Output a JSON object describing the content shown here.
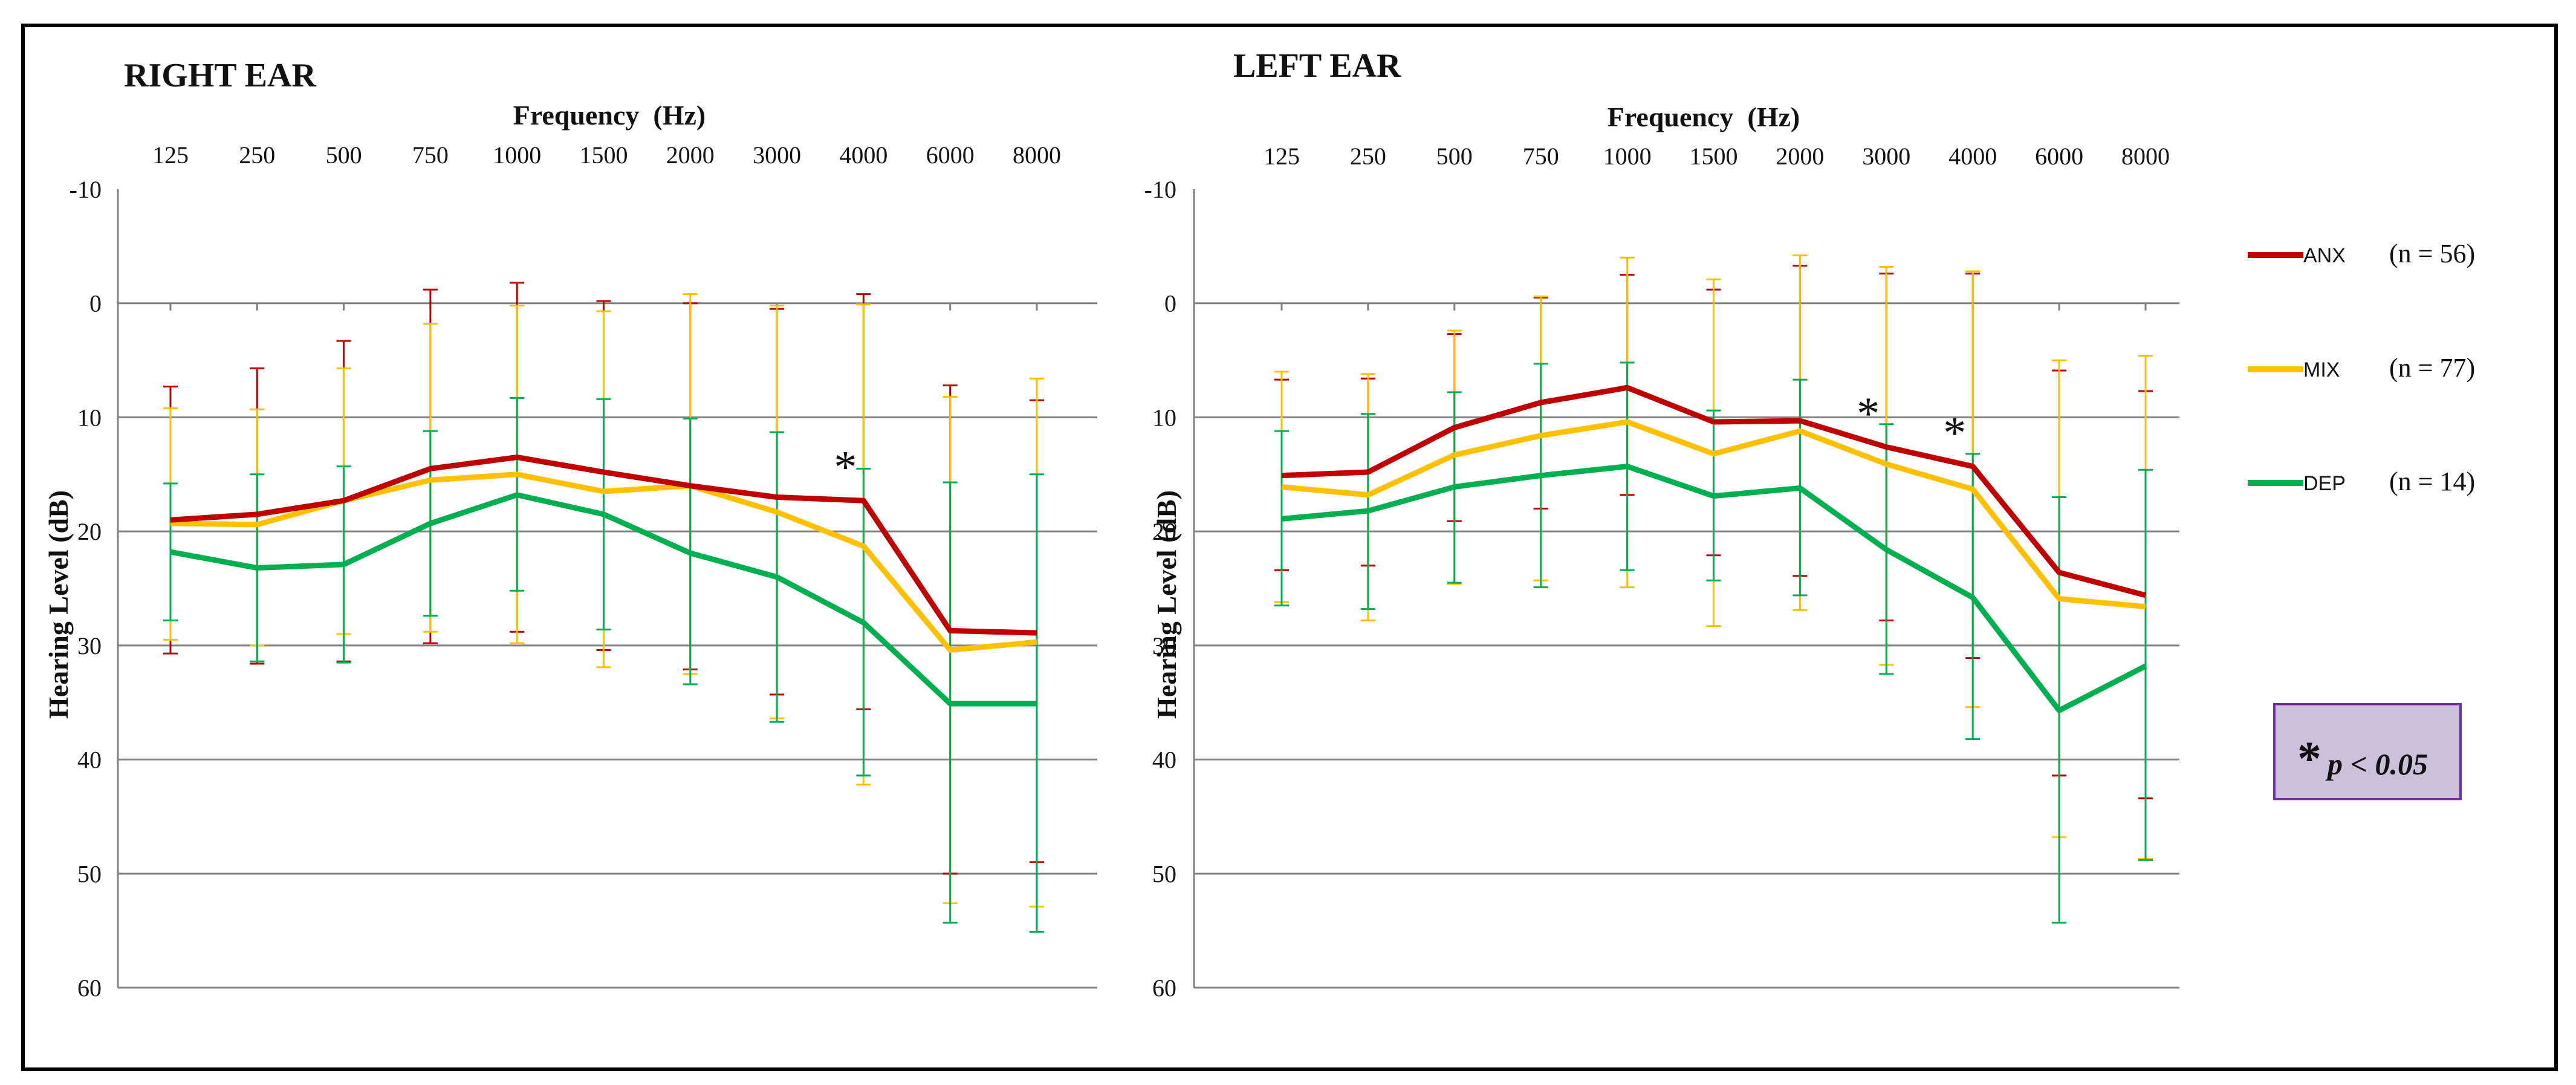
{
  "colors": {
    "ANX": "#C00000",
    "MIX": "#FFC000",
    "DEP": "#00B050",
    "box_fill": "#CCC1DA",
    "box_stroke": "#7030A0",
    "grid": "#808080"
  },
  "legend": {
    "items": [
      {
        "name": "ANX",
        "n_label": "(n = 56)"
      },
      {
        "name": "MIX",
        "n_label": "(n = 77)"
      },
      {
        "name": "DEP",
        "n_label": "(n = 14)"
      }
    ]
  },
  "significance_note": {
    "symbol": "*",
    "text": "p < 0.05"
  },
  "chart_data": [
    {
      "type": "line",
      "title": "RIGHT EAR",
      "xlabel": "Frequency  (Hz)",
      "ylabel": "Hearing Level (dB)",
      "categories": [
        "125",
        "250",
        "500",
        "750",
        "1000",
        "1500",
        "2000",
        "3000",
        "4000",
        "6000",
        "8000"
      ],
      "ylim": [
        -10,
        60
      ],
      "y_inverted": true,
      "yticks": [
        "-10",
        "0",
        "10",
        "20",
        "30",
        "40",
        "50",
        "60"
      ],
      "grid": true,
      "series": [
        {
          "name": "ANX",
          "values": [
            19,
            18.5,
            17.3,
            14.5,
            13.5,
            14.8,
            16,
            17,
            17.3,
            28.7,
            28.9
          ],
          "err_low": [
            7.3,
            5.7,
            3.3,
            -1.2,
            -1.8,
            -0.2,
            0,
            0.5,
            -0.8,
            7.2,
            8.5
          ],
          "err_high": [
            30.7,
            31.6,
            31.4,
            29.8,
            28.8,
            30.4,
            32.1,
            34.3,
            35.6,
            50,
            49
          ]
        },
        {
          "name": "MIX",
          "values": [
            19.3,
            19.4,
            17.3,
            15.5,
            15,
            16.5,
            16,
            18.3,
            21.3,
            30.4,
            29.7
          ],
          "err_low": [
            9.2,
            9.3,
            5.7,
            1.8,
            0.2,
            0.7,
            -0.8,
            0.2,
            0.1,
            8.2,
            6.6
          ],
          "err_high": [
            29.5,
            30,
            29,
            28.8,
            29.8,
            31.9,
            32.5,
            36.4,
            42.2,
            52.6,
            52.9
          ]
        },
        {
          "name": "DEP",
          "values": [
            21.8,
            23.2,
            22.9,
            19.3,
            16.8,
            18.5,
            21.9,
            24,
            28,
            35.1,
            35.1
          ],
          "err_low": [
            15.8,
            15,
            14.3,
            11.2,
            8.3,
            8.4,
            10.1,
            11.3,
            14.5,
            15.7,
            15
          ],
          "err_high": [
            27.8,
            31.4,
            31.5,
            27.4,
            25.2,
            28.6,
            33.4,
            36.7,
            41.4,
            54.3,
            55.1
          ]
        }
      ],
      "annotations": [
        {
          "text": "*",
          "category": "4000"
        }
      ]
    },
    {
      "type": "line",
      "title": "LEFT EAR",
      "xlabel": "Frequency  (Hz)",
      "ylabel": "Hearing Level (dB)",
      "categories": [
        "125",
        "250",
        "500",
        "750",
        "1000",
        "1500",
        "2000",
        "3000",
        "4000",
        "6000",
        "8000"
      ],
      "ylim": [
        -10,
        60
      ],
      "y_inverted": true,
      "yticks": [
        "-10",
        "0",
        "10",
        "20",
        "30",
        "40",
        "50",
        "60"
      ],
      "grid": true,
      "series": [
        {
          "name": "ANX",
          "values": [
            15.1,
            14.8,
            10.9,
            8.7,
            7.4,
            10.4,
            10.3,
            12.6,
            14.3,
            23.6,
            25.6
          ],
          "err_low": [
            6.7,
            6.6,
            2.7,
            -0.5,
            -2.5,
            -1.2,
            -3.3,
            -2.6,
            -2.6,
            5.9,
            7.7
          ],
          "err_high": [
            23.4,
            23,
            19.1,
            18,
            16.8,
            22.1,
            23.9,
            27.8,
            31.1,
            41.4,
            43.4
          ]
        },
        {
          "name": "MIX",
          "values": [
            16.1,
            16.8,
            13.3,
            11.6,
            10.4,
            13.2,
            11.2,
            14.1,
            16.3,
            25.9,
            26.6
          ],
          "err_low": [
            6,
            6.2,
            2.4,
            -0.6,
            -4,
            -2.1,
            -4.2,
            -3.2,
            -2.8,
            5,
            4.6
          ],
          "err_high": [
            26.2,
            27.8,
            24.6,
            24.3,
            24.9,
            28.3,
            26.9,
            31.7,
            35.4,
            46.8,
            48.7
          ]
        },
        {
          "name": "DEP",
          "values": [
            18.9,
            18.2,
            16.1,
            15.1,
            14.3,
            16.9,
            16.2,
            21.6,
            25.8,
            35.7,
            31.8
          ],
          "err_low": [
            11.2,
            9.7,
            7.8,
            5.3,
            5.2,
            9.4,
            6.7,
            10.6,
            13.2,
            17,
            14.6
          ],
          "err_high": [
            26.5,
            26.8,
            24.5,
            24.9,
            23.4,
            24.3,
            25.6,
            32.5,
            38.2,
            54.3,
            48.8
          ]
        }
      ],
      "annotations": [
        {
          "text": "*",
          "category": "3000"
        },
        {
          "text": "*",
          "category": "4000"
        }
      ]
    }
  ]
}
